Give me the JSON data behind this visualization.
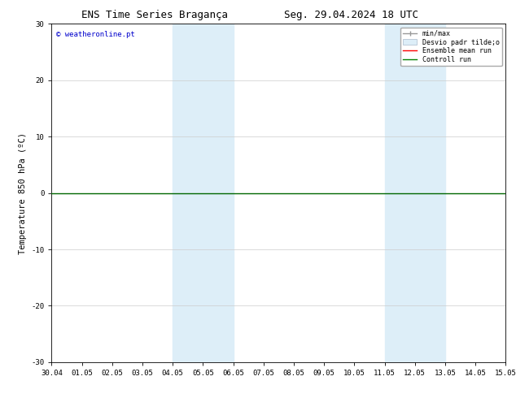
{
  "title_left": "ENS Time Series Bragança",
  "title_right": "Seg. 29.04.2024 18 UTC",
  "ylabel": "Temperature 850 hPa (ºC)",
  "xlabel_ticks": [
    "30.04",
    "01.05",
    "02.05",
    "03.05",
    "04.05",
    "05.05",
    "06.05",
    "07.05",
    "08.05",
    "09.05",
    "10.05",
    "11.05",
    "12.05",
    "13.05",
    "14.05",
    "15.05"
  ],
  "xlim": [
    0,
    15
  ],
  "ylim": [
    -30,
    30
  ],
  "yticks": [
    -30,
    -20,
    -10,
    0,
    10,
    20,
    30
  ],
  "background_color": "#ffffff",
  "plot_bg_color": "#ffffff",
  "shade_regions": [
    {
      "x_start": 4.0,
      "x_end": 5.0,
      "color": "#ddeef8"
    },
    {
      "x_start": 5.0,
      "x_end": 6.0,
      "color": "#ddeef8"
    },
    {
      "x_start": 11.0,
      "x_end": 12.0,
      "color": "#ddeef8"
    },
    {
      "x_start": 12.0,
      "x_end": 13.0,
      "color": "#ddeef8"
    }
  ],
  "watermark_text": "© weatheronline.pt",
  "watermark_color": "#0000cc",
  "zero_line_y": 0.0,
  "zero_line_color": "#006600",
  "zero_line_lw": 1.0,
  "grid_color": "#cccccc",
  "title_fontsize": 9,
  "tick_fontsize": 6.5,
  "ylabel_fontsize": 7.5,
  "watermark_fontsize": 6.5,
  "legend_fontsize": 6.0
}
